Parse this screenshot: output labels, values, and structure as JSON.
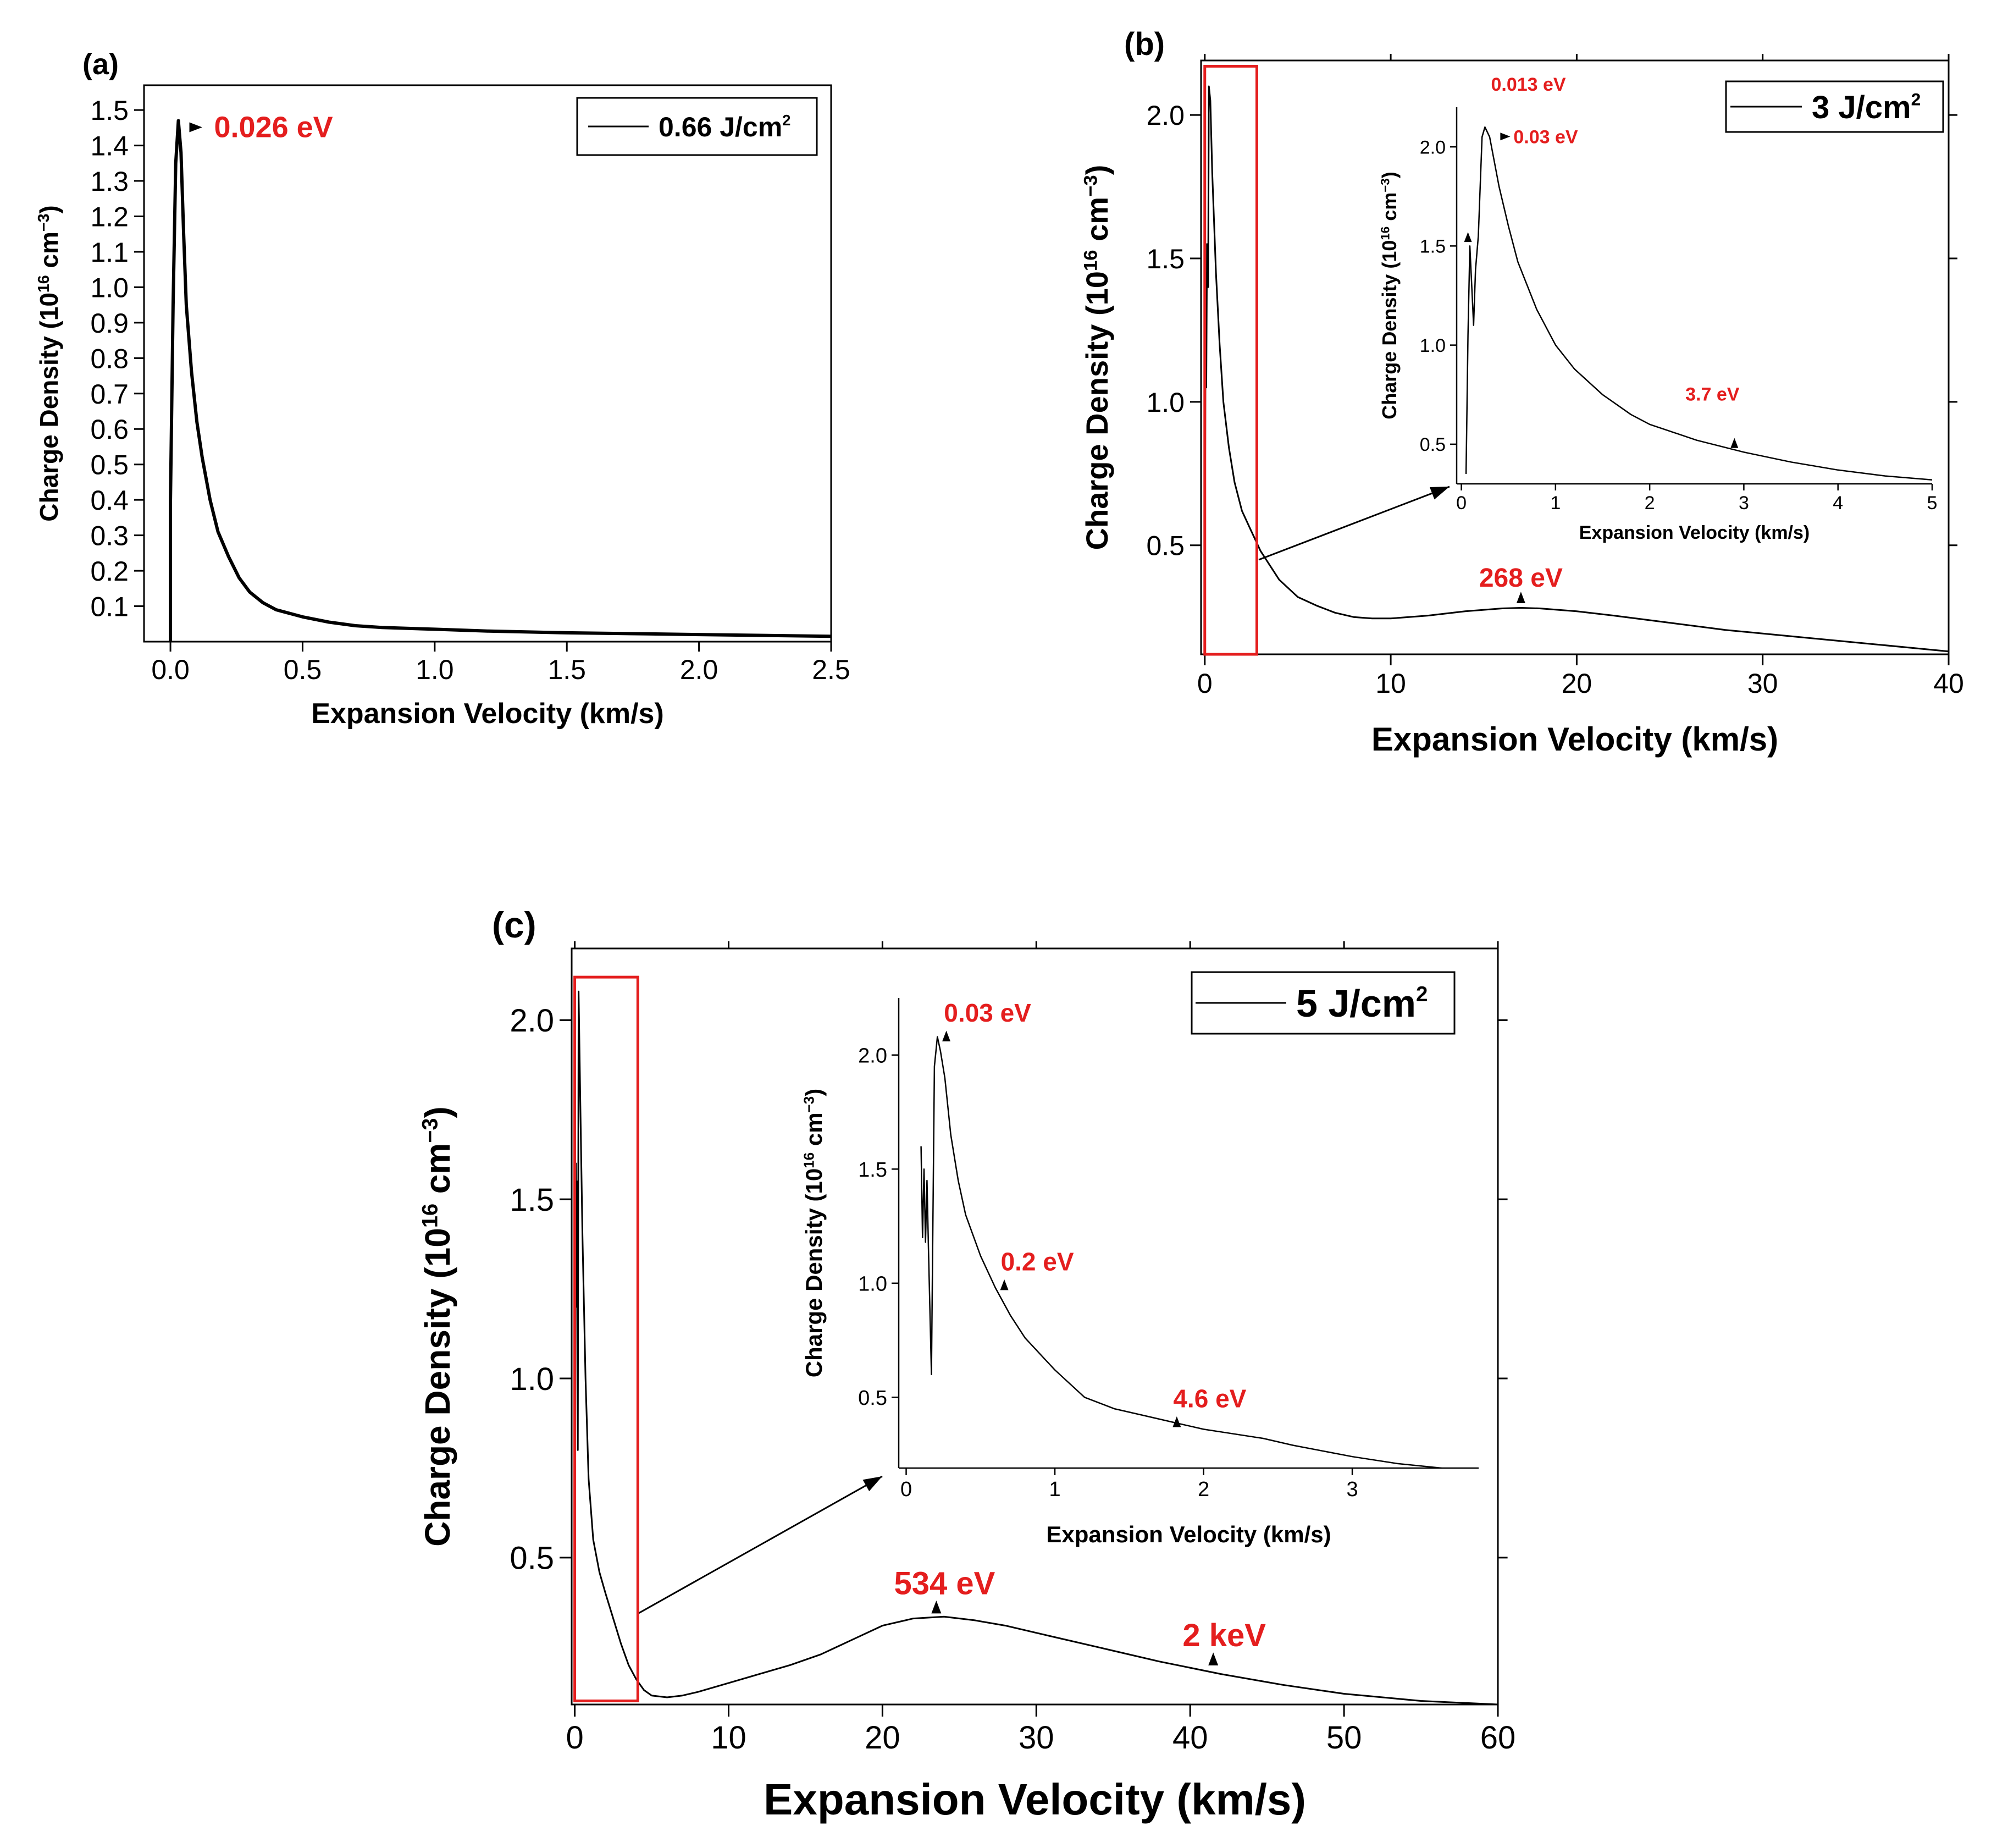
{
  "colors": {
    "curve": "#000000",
    "annotation": "#e41e1e",
    "zoom_box": "#e41e1e",
    "axes": "#000000",
    "background": "#ffffff"
  },
  "chart_data": [
    {
      "id": "a",
      "type": "line",
      "panel_label": "(a)",
      "xlabel": "Expansion Velocity (km/s)",
      "ylabel": "Charge Density (10^16 cm^-3)",
      "ylabel_parts": {
        "pre": "Charge Density (10",
        "sup1": "16",
        "mid": " cm",
        "sup2": "−3",
        "post": ")"
      },
      "xlim": [
        -0.1,
        2.5
      ],
      "ylim": [
        0.0,
        1.57
      ],
      "xticks": [
        "0.0",
        "0.5",
        "1.0",
        "1.5",
        "2.0",
        "2.5"
      ],
      "xtick_values": [
        0,
        0.5,
        1.0,
        1.5,
        2.0,
        2.5
      ],
      "yticks": [
        "0.1",
        "0.2",
        "0.3",
        "0.4",
        "0.5",
        "0.6",
        "0.7",
        "0.8",
        "0.9",
        "1.0",
        "1.1",
        "1.2",
        "1.3",
        "1.4",
        "1.5"
      ],
      "ytick_values": [
        0.1,
        0.2,
        0.3,
        0.4,
        0.5,
        0.6,
        0.7,
        0.8,
        0.9,
        1.0,
        1.1,
        1.2,
        1.3,
        1.4,
        1.5
      ],
      "legend": {
        "label": "0.66 J/cm",
        "sup": "2",
        "location": "top-right"
      },
      "series": [
        {
          "name": "0.66 J/cm2",
          "x": [
            0.0,
            0.0,
            0.01,
            0.02,
            0.03,
            0.04,
            0.05,
            0.06,
            0.08,
            0.1,
            0.12,
            0.15,
            0.18,
            0.22,
            0.26,
            0.3,
            0.35,
            0.4,
            0.5,
            0.6,
            0.7,
            0.8,
            1.0,
            1.2,
            1.5,
            1.8,
            2.0,
            2.3,
            2.5
          ],
          "y": [
            0.0,
            0.4,
            0.95,
            1.35,
            1.47,
            1.38,
            1.15,
            0.95,
            0.76,
            0.62,
            0.52,
            0.4,
            0.31,
            0.24,
            0.18,
            0.14,
            0.11,
            0.09,
            0.07,
            0.055,
            0.045,
            0.04,
            0.035,
            0.03,
            0.025,
            0.022,
            0.02,
            0.017,
            0.015
          ]
        }
      ],
      "annotations": [
        {
          "text": "0.026 eV",
          "x": 0.03,
          "y": 1.47
        }
      ]
    },
    {
      "id": "b",
      "type": "line",
      "panel_label": "(b)",
      "xlabel": "Expansion Velocity (km/s)",
      "ylabel": "Charge Density (10^16 cm^-3)",
      "ylabel_parts": {
        "pre": "Charge Density (10",
        "sup1": "16",
        "mid": " cm",
        "sup2": "−3",
        "post": ")"
      },
      "xlim": [
        -0.2,
        40
      ],
      "ylim": [
        0.12,
        2.19
      ],
      "xticks": [
        "0",
        "10",
        "20",
        "30",
        "40"
      ],
      "xtick_values": [
        0,
        10,
        20,
        30,
        40
      ],
      "yticks": [
        "0.5",
        "1.0",
        "1.5",
        "2.0"
      ],
      "ytick_values": [
        0.5,
        1.0,
        1.5,
        2.0
      ],
      "legend": {
        "label": "3 J/cm",
        "sup": "2",
        "location": "top-right"
      },
      "zoom_box": {
        "x": [
          0,
          2.8
        ],
        "y": [
          0.12,
          2.17
        ]
      },
      "series": [
        {
          "name": "3 J/cm2",
          "x": [
            0.0,
            0.05,
            0.08,
            0.12,
            0.18,
            0.22,
            0.3,
            0.4,
            0.6,
            0.8,
            1.0,
            1.3,
            1.6,
            2.0,
            2.5,
            3.0,
            4.0,
            5.0,
            6.0,
            7.0,
            8.0,
            9.0,
            10.0,
            12.0,
            14.0,
            16.0,
            17.0,
            18.0,
            20.0,
            22.0,
            25.0,
            28.0,
            32.0,
            36.0,
            40.0
          ],
          "y": [
            0.35,
            1.45,
            1.05,
            1.55,
            1.4,
            2.1,
            2.05,
            1.8,
            1.45,
            1.2,
            1.0,
            0.84,
            0.72,
            0.62,
            0.55,
            0.48,
            0.38,
            0.32,
            0.29,
            0.265,
            0.25,
            0.245,
            0.245,
            0.255,
            0.27,
            0.28,
            0.282,
            0.28,
            0.27,
            0.255,
            0.23,
            0.205,
            0.18,
            0.155,
            0.13
          ]
        }
      ],
      "annotations": [
        {
          "text": "268 eV",
          "x": 17,
          "y": 0.283
        }
      ],
      "inset": {
        "xlabel": "Expansion Velocity (km/s)",
        "ylabel": "Charge Density (10^16 cm^-3)",
        "ylabel_parts": {
          "pre": "Charge Density (10",
          "sup1": "16",
          "mid": " cm",
          "sup2": "−3",
          "post": ")"
        },
        "xlim": [
          -0.05,
          5
        ],
        "ylim": [
          0.3,
          2.2
        ],
        "xticks": [
          "0",
          "1",
          "2",
          "3",
          "4",
          "5"
        ],
        "xtick_values": [
          0,
          1,
          2,
          3,
          4,
          5
        ],
        "yticks": [
          "0.5",
          "1.0",
          "1.5",
          "2.0"
        ],
        "ytick_values": [
          0.5,
          1.0,
          1.5,
          2.0
        ],
        "series": [
          {
            "name": "3 J/cm2 zoom",
            "x": [
              0.05,
              0.07,
              0.09,
              0.11,
              0.13,
              0.15,
              0.18,
              0.22,
              0.25,
              0.3,
              0.4,
              0.5,
              0.6,
              0.8,
              1.0,
              1.2,
              1.5,
              1.8,
              2.0,
              2.5,
              3.0,
              3.5,
              4.0,
              4.5,
              5.0
            ],
            "y": [
              0.35,
              1.05,
              1.5,
              1.3,
              1.1,
              1.38,
              1.55,
              2.05,
              2.1,
              2.05,
              1.8,
              1.6,
              1.42,
              1.18,
              1.0,
              0.88,
              0.75,
              0.65,
              0.6,
              0.52,
              0.46,
              0.41,
              0.37,
              0.34,
              0.32
            ]
          }
        ],
        "annotations": [
          {
            "text": "0.013 eV",
            "x": 0.07,
            "y": 1.52,
            "label_x": 0.25,
            "label_y": 2.2
          },
          {
            "text": "0.03 eV",
            "x": 0.25,
            "y": 2.08
          },
          {
            "text": "3.7 eV",
            "x": 2.9,
            "y": 0.47
          }
        ]
      }
    },
    {
      "id": "c",
      "type": "line",
      "panel_label": "(c)",
      "xlabel": "Expansion Velocity (km/s)",
      "ylabel": "Charge Density (10^16 cm^-3)",
      "ylabel_parts": {
        "pre": "Charge Density (10",
        "sup1": "16",
        "mid": " cm",
        "sup2": "−3",
        "post": ")"
      },
      "xlim": [
        -0.2,
        60
      ],
      "ylim": [
        0.09,
        2.2
      ],
      "xticks": [
        "0",
        "10",
        "20",
        "30",
        "40",
        "50",
        "60"
      ],
      "xtick_values": [
        0,
        10,
        20,
        30,
        40,
        50,
        60
      ],
      "yticks": [
        "0.5",
        "1.0",
        "1.5",
        "2.0"
      ],
      "ytick_values": [
        0.5,
        1.0,
        1.5,
        2.0
      ],
      "legend": {
        "label": "5 J/cm",
        "sup": "2",
        "location": "top-right"
      },
      "zoom_box": {
        "x": [
          0,
          4.1
        ],
        "y": [
          0.1,
          2.12
        ]
      },
      "series": [
        {
          "name": "5 J/cm2",
          "x": [
            0.0,
            0.08,
            0.12,
            0.16,
            0.2,
            0.25,
            0.35,
            0.5,
            0.7,
            0.9,
            1.2,
            1.6,
            2.0,
            2.5,
            3.0,
            3.5,
            4.0,
            4.5,
            5.0,
            6.0,
            7.0,
            8.0,
            10.0,
            12.0,
            14.0,
            16.0,
            18.0,
            20.0,
            22.0,
            24.0,
            26.0,
            28.0,
            30.0,
            34.0,
            38.0,
            42.0,
            46.0,
            50.0,
            55.0,
            60.0
          ],
          "y": [
            0.3,
            1.6,
            1.2,
            1.55,
            0.8,
            2.08,
            1.8,
            1.4,
            1.0,
            0.72,
            0.55,
            0.46,
            0.4,
            0.33,
            0.26,
            0.2,
            0.16,
            0.13,
            0.115,
            0.11,
            0.115,
            0.125,
            0.15,
            0.175,
            0.2,
            0.23,
            0.27,
            0.31,
            0.33,
            0.335,
            0.325,
            0.31,
            0.29,
            0.25,
            0.21,
            0.175,
            0.145,
            0.12,
            0.1,
            0.09
          ]
        }
      ],
      "annotations": [
        {
          "text": "534 eV",
          "x": 23.5,
          "y": 0.335
        },
        {
          "text": "2 keV",
          "x": 41.5,
          "y": 0.19
        }
      ],
      "inset": {
        "xlabel": "Expansion Velocity (km/s)",
        "ylabel": "Charge Density (10^16 cm^-3)",
        "ylabel_parts": {
          "pre": "Charge Density (10",
          "sup1": "16",
          "mid": " cm",
          "sup2": "−3",
          "post": ")"
        },
        "xlim": [
          -0.05,
          3.85
        ],
        "ylim": [
          0.19,
          2.25
        ],
        "xticks": [
          "0",
          "1",
          "2",
          "3"
        ],
        "xtick_values": [
          0,
          1,
          2,
          3
        ],
        "yticks": [
          "0.5",
          "1.0",
          "1.5",
          "2.0"
        ],
        "ytick_values": [
          0.5,
          1.0,
          1.5,
          2.0
        ],
        "series": [
          {
            "name": "5 J/cm2 zoom",
            "x": [
              0.1,
              0.11,
              0.12,
              0.13,
              0.14,
              0.15,
              0.17,
              0.19,
              0.21,
              0.23,
              0.26,
              0.3,
              0.35,
              0.4,
              0.5,
              0.6,
              0.7,
              0.8,
              1.0,
              1.2,
              1.4,
              1.6,
              1.8,
              2.0,
              2.2,
              2.4,
              2.6,
              3.0,
              3.3,
              3.6
            ],
            "y": [
              1.6,
              1.2,
              1.5,
              1.18,
              1.45,
              1.15,
              0.6,
              1.95,
              2.08,
              2.02,
              1.9,
              1.65,
              1.45,
              1.3,
              1.12,
              0.98,
              0.86,
              0.76,
              0.62,
              0.5,
              0.45,
              0.42,
              0.39,
              0.36,
              0.34,
              0.32,
              0.29,
              0.24,
              0.21,
              0.19
            ]
          }
        ],
        "annotations": [
          {
            "text": "0.03 eV",
            "x": 0.27,
            "y": 2.05
          },
          {
            "text": "0.2 eV",
            "x": 0.66,
            "y": 0.96
          },
          {
            "text": "4.6 eV",
            "x": 1.82,
            "y": 0.36
          }
        ]
      }
    }
  ]
}
